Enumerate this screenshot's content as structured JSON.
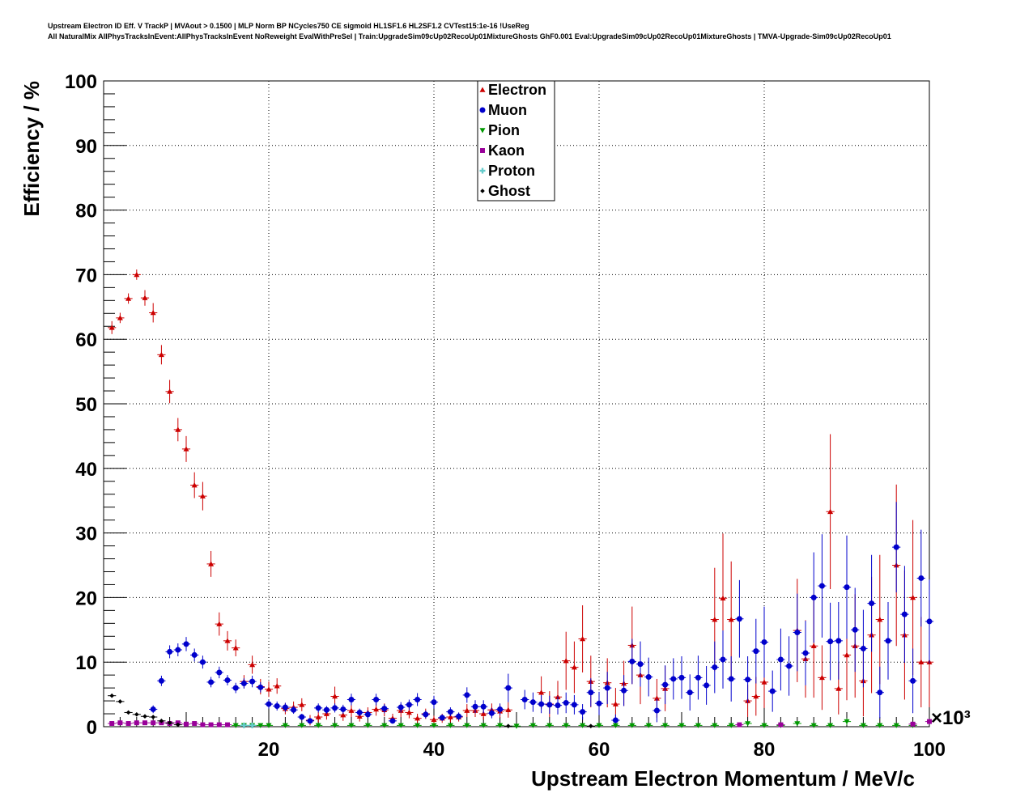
{
  "header": {
    "title_line1": "Upstream Electron ID Eff. V TrackP | MVAout > 0.1500 | MLP Norm BP NCycles750 CE sigmoid HL1SF1.6 HL2SF1.2 CVTest15:1e-16 !UseReg",
    "title_line2": "All NaturalMix AllPhysTracksInEvent:AllPhysTracksInEvent NoReweight EvalWithPreSel | Train:UpgradeSim09cUp02RecoUp01MixtureGhosts GhF0.001 Eval:UpgradeSim09cUp02RecoUp01MixtureGhosts | TMVA-Upgrade-Sim09cUp02RecoUp01"
  },
  "chart_data": {
    "type": "scatter",
    "xlabel": "Upstream Electron Momentum / MeV/c",
    "ylabel": "Efficiency / %",
    "x_multiplier": "×10³",
    "xlim": [
      0,
      100
    ],
    "ylim": [
      0,
      100
    ],
    "x_ticks": [
      "20",
      "40",
      "60",
      "80",
      "100"
    ],
    "y_ticks": [
      "0",
      "10",
      "20",
      "30",
      "40",
      "50",
      "60",
      "70",
      "80",
      "90",
      "100"
    ],
    "grid": true,
    "legend_position": "top-center",
    "series": [
      {
        "name": "Electron",
        "color": "#cc0000",
        "marker": "triangle-up",
        "x": [
          1,
          2,
          3,
          4,
          5,
          6,
          7,
          8,
          9,
          10,
          11,
          12,
          13,
          14,
          15,
          16,
          17,
          18,
          19,
          20,
          21,
          22,
          23,
          24,
          25,
          26,
          27,
          28,
          29,
          30,
          31,
          32,
          33,
          34,
          35,
          36,
          37,
          38,
          39,
          40,
          41,
          42,
          43,
          44,
          45,
          46,
          47,
          48,
          49,
          53,
          54,
          55,
          56,
          57,
          58,
          59,
          61,
          62,
          63,
          64,
          65,
          67,
          68,
          74,
          75,
          76,
          78,
          79,
          80,
          84,
          85,
          86,
          87,
          88,
          89,
          90,
          91,
          92,
          93,
          94,
          96,
          97,
          98,
          99,
          100
        ],
        "y": [
          61.8,
          63.3,
          66.3,
          70.0,
          66.4,
          64.1,
          57.6,
          51.9,
          46.0,
          43.0,
          37.4,
          35.7,
          25.2,
          15.9,
          13.3,
          12.2,
          7.0,
          9.6,
          6.2,
          5.8,
          6.3,
          2.8,
          3.0,
          3.4,
          1.0,
          1.5,
          2.0,
          4.7,
          1.8,
          2.5,
          1.6,
          2.2,
          2.7,
          2.6,
          1.3,
          2.5,
          2.2,
          1.3,
          2.0,
          1.1,
          1.3,
          1.5,
          1.5,
          2.5,
          2.5,
          2.0,
          2.6,
          2.4,
          2.6,
          5.3,
          3.5,
          4.6,
          10.2,
          9.2,
          13.6,
          7.0,
          6.8,
          3.5,
          6.7,
          12.6,
          8.0,
          4.4,
          5.9,
          16.6,
          19.9,
          16.6,
          4.0,
          4.7,
          6.9,
          14.9,
          10.5,
          12.5,
          7.6,
          33.3,
          5.9,
          11.1,
          12.5,
          7.1,
          14.2,
          16.6,
          25.0,
          14.2,
          20.0,
          10.0,
          10.0
        ],
        "err": [
          1.0,
          0.8,
          0.8,
          0.8,
          1.2,
          1.5,
          1.5,
          1.8,
          1.8,
          2.0,
          2.0,
          2.2,
          2.0,
          1.8,
          1.5,
          1.3,
          1.0,
          1.4,
          1.2,
          1.2,
          1.2,
          0.9,
          0.9,
          1.0,
          0.8,
          0.8,
          0.9,
          1.5,
          0.9,
          1.0,
          0.8,
          0.8,
          1.0,
          1.0,
          0.7,
          1.0,
          0.9,
          0.7,
          0.8,
          0.6,
          0.7,
          0.8,
          0.7,
          1.0,
          1.0,
          0.9,
          1.0,
          1.0,
          1.2,
          2.5,
          2.0,
          2.5,
          4.5,
          4.0,
          5.2,
          4.0,
          3.8,
          2.5,
          3.5,
          6.0,
          4.5,
          3.0,
          3.5,
          8.0,
          10.0,
          9.0,
          2.5,
          3.0,
          4.0,
          8.0,
          6.0,
          8.0,
          5.0,
          12.0,
          4.0,
          7.0,
          8.0,
          5.5,
          9.0,
          10.0,
          12.5,
          10.0,
          12.0,
          7.0,
          7.0
        ]
      },
      {
        "name": "Muon",
        "color": "#0000cc",
        "marker": "circle",
        "x": [
          6,
          7,
          8,
          9,
          10,
          11,
          12,
          13,
          14,
          15,
          16,
          17,
          18,
          19,
          20,
          21,
          22,
          23,
          24,
          25,
          26,
          27,
          28,
          29,
          30,
          31,
          32,
          33,
          34,
          35,
          36,
          37,
          38,
          39,
          40,
          41,
          42,
          43,
          44,
          45,
          46,
          47,
          48,
          49,
          51,
          52,
          53,
          54,
          55,
          56,
          57,
          58,
          59,
          60,
          61,
          62,
          63,
          64,
          65,
          66,
          67,
          68,
          69,
          70,
          71,
          72,
          73,
          74,
          75,
          76,
          77,
          78,
          79,
          80,
          81,
          82,
          83,
          84,
          85,
          86,
          87,
          88,
          89,
          90,
          91,
          92,
          93,
          94,
          95,
          96,
          97,
          98,
          99,
          100
        ],
        "y": [
          2.7,
          7.1,
          11.6,
          11.9,
          12.8,
          11.1,
          10.0,
          6.9,
          8.4,
          7.2,
          6.0,
          6.7,
          7.0,
          6.1,
          3.5,
          3.2,
          3.0,
          2.6,
          1.5,
          0.9,
          2.9,
          2.6,
          2.9,
          2.7,
          4.2,
          2.2,
          1.9,
          4.2,
          2.8,
          0.9,
          3.0,
          3.4,
          4.2,
          1.9,
          3.8,
          1.4,
          2.3,
          1.6,
          4.9,
          3.1,
          3.1,
          2.1,
          2.7,
          6.0,
          4.2,
          3.8,
          3.5,
          3.4,
          3.3,
          3.7,
          3.4,
          2.3,
          5.3,
          3.6,
          6.0,
          1.0,
          5.6,
          10.1,
          9.7,
          7.7,
          2.5,
          6.5,
          7.4,
          7.6,
          5.3,
          7.6,
          6.4,
          9.2,
          10.4,
          7.4,
          16.7,
          7.3,
          11.7,
          13.1,
          5.5,
          10.4,
          9.4,
          14.6,
          11.4,
          20.0,
          21.8,
          13.2,
          13.3,
          21.6,
          15.0,
          12.1,
          19.1,
          5.3,
          13.3,
          27.8,
          17.4,
          7.1,
          23.0,
          16.3
        ],
        "err": [
          0.6,
          0.8,
          1.0,
          1.0,
          1.1,
          1.0,
          1.0,
          0.8,
          0.9,
          0.8,
          0.8,
          0.8,
          0.9,
          0.8,
          0.7,
          0.7,
          0.7,
          0.6,
          0.5,
          0.4,
          0.7,
          0.6,
          0.7,
          0.7,
          0.9,
          0.6,
          0.6,
          0.9,
          0.7,
          0.4,
          0.8,
          0.8,
          1.0,
          0.6,
          1.0,
          0.5,
          0.7,
          0.6,
          1.2,
          1.0,
          1.0,
          0.8,
          0.9,
          2.2,
          1.5,
          1.5,
          1.4,
          1.4,
          1.4,
          1.6,
          1.5,
          1.2,
          2.2,
          1.8,
          2.5,
          0.9,
          2.4,
          3.5,
          3.5,
          3.0,
          1.8,
          3.0,
          3.2,
          3.3,
          2.8,
          3.4,
          3.0,
          4.0,
          4.5,
          3.5,
          6.0,
          3.6,
          5.0,
          5.5,
          3.2,
          4.8,
          4.6,
          6.0,
          5.0,
          7.0,
          8.0,
          6.0,
          6.0,
          8.0,
          6.5,
          6.0,
          7.5,
          4.0,
          6.0,
          7.0,
          7.5,
          5.0,
          7.5,
          6.5
        ]
      },
      {
        "name": "Pion",
        "color": "#009900",
        "marker": "triangle-down",
        "x": [
          16,
          17,
          18,
          19,
          20,
          22,
          24,
          26,
          28,
          30,
          32,
          34,
          36,
          38,
          40,
          42,
          44,
          46,
          48,
          50,
          52,
          54,
          56,
          58,
          60,
          62,
          64,
          66,
          68,
          70,
          72,
          74,
          76,
          78,
          80,
          82,
          84,
          86,
          88,
          90,
          92,
          94,
          96,
          98
        ],
        "y": [
          0.2,
          0.2,
          0.2,
          0.2,
          0.2,
          0.2,
          0.2,
          0.2,
          0.2,
          0.2,
          0.2,
          0.2,
          0.2,
          0.2,
          0.2,
          0.2,
          0.2,
          0.2,
          0.2,
          0.1,
          0.2,
          0.2,
          0.2,
          0.2,
          0.2,
          0.2,
          0.2,
          0.2,
          0.2,
          0.2,
          0.2,
          0.2,
          0.2,
          0.5,
          0.2,
          0.2,
          0.5,
          0.2,
          0.2,
          0.8,
          0.2,
          0.2,
          0.2,
          0.2
        ],
        "err": [
          0.2,
          0.2,
          0.2,
          0.2,
          0.2,
          0.2,
          0.2,
          0.2,
          0.2,
          0.2,
          0.2,
          0.2,
          0.2,
          0.2,
          0.2,
          0.2,
          0.2,
          0.2,
          0.2,
          0.2,
          0.2,
          0.2,
          0.2,
          0.2,
          0.2,
          0.2,
          0.2,
          0.2,
          0.2,
          0.2,
          0.2,
          0.2,
          0.2,
          0.3,
          0.2,
          0.2,
          0.3,
          0.2,
          0.2,
          0.5,
          0.2,
          0.2,
          0.2,
          0.2
        ]
      },
      {
        "name": "Kaon",
        "color": "#990099",
        "marker": "square",
        "x": [
          1,
          2,
          3,
          4,
          5,
          6,
          7,
          8,
          9,
          10,
          11,
          12,
          13,
          14,
          15,
          77,
          82,
          98,
          100
        ],
        "y": [
          0.5,
          0.6,
          0.5,
          0.6,
          0.6,
          0.6,
          0.6,
          0.5,
          0.6,
          0.4,
          0.5,
          0.3,
          0.3,
          0.3,
          0.3,
          0.3,
          0.3,
          0.4,
          0.8
        ],
        "err": [
          0.2,
          0.2,
          0.2,
          0.2,
          0.2,
          0.2,
          0.2,
          0.2,
          0.2,
          0.2,
          0.2,
          0.2,
          0.2,
          0.2,
          0.2,
          0.2,
          0.2,
          0.3,
          0.4
        ]
      },
      {
        "name": "Proton",
        "color": "#66cccc",
        "marker": "cross",
        "x": [
          17,
          18
        ],
        "y": [
          0.2,
          0.2
        ],
        "err": [
          0.2,
          0.2
        ]
      },
      {
        "name": "Ghost",
        "color": "#000000",
        "marker": "diamond",
        "x": [
          1,
          2,
          3,
          4,
          5,
          6,
          7,
          8,
          9,
          49,
          59
        ],
        "y": [
          4.8,
          3.9,
          2.2,
          1.9,
          1.6,
          1.5,
          0.9,
          0.6,
          0.3,
          0.1,
          0.1
        ],
        "err": [
          0.3,
          0.3,
          0.2,
          0.2,
          0.2,
          0.2,
          0.2,
          0.2,
          0.1,
          0.1,
          0.1
        ]
      }
    ]
  }
}
